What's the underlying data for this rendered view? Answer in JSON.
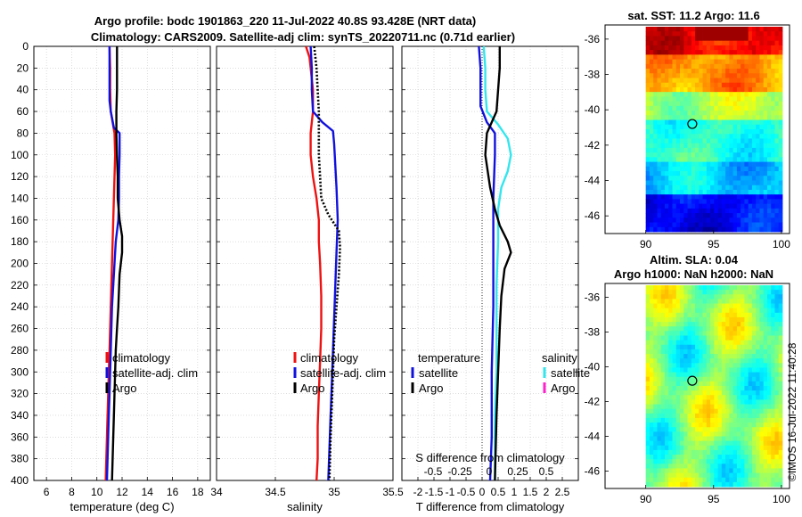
{
  "title_line1": "Argo profile: bodc 1901863_220 11-Jul-2022 40.8S 93.428E (NRT data)",
  "title_line2": "Climatology: CARS2009. Satellite-adj clim: synTS_20220711.nc (0.71d earlier)",
  "timestamp": "©IMOS 16-Jul-2022 11:40:28",
  "colors": {
    "red": "#ee1111",
    "blue": "#1111dd",
    "black": "#000000",
    "cyan": "#33e6ee",
    "magenta": "#ff22cc"
  },
  "chart_data": [
    {
      "type": "line",
      "panel": "temperature",
      "xlabel": "temperature (deg C)",
      "xlim": [
        5,
        19
      ],
      "xticks": [
        6,
        8,
        10,
        12,
        14,
        16,
        18
      ],
      "ylim": [
        0,
        400
      ],
      "yticks": [
        0,
        20,
        40,
        60,
        80,
        100,
        120,
        140,
        160,
        180,
        200,
        220,
        240,
        260,
        280,
        300,
        320,
        340,
        360,
        380,
        400
      ],
      "grid": true,
      "legend": [
        "climatology",
        "satellite-adj. clim",
        "Argo"
      ],
      "series": [
        {
          "name": "climatology",
          "color": "red",
          "width": 2.4,
          "dash": "",
          "points": [
            [
              11.0,
              0
            ],
            [
              11.05,
              20
            ],
            [
              11.05,
              40
            ],
            [
              11.1,
              60
            ],
            [
              11.4,
              80
            ],
            [
              11.45,
              100
            ],
            [
              11.4,
              120
            ],
            [
              11.35,
              140
            ],
            [
              11.3,
              160
            ],
            [
              11.25,
              180
            ],
            [
              11.2,
              200
            ],
            [
              11.15,
              220
            ],
            [
              11.1,
              240
            ],
            [
              11.05,
              260
            ],
            [
              11.0,
              280
            ],
            [
              10.95,
              300
            ],
            [
              10.9,
              320
            ],
            [
              10.85,
              340
            ],
            [
              10.8,
              360
            ],
            [
              10.75,
              380
            ],
            [
              10.7,
              400
            ]
          ]
        },
        {
          "name": "satellite-adj. clim",
          "color": "blue",
          "width": 2.4,
          "dash": "",
          "points": [
            [
              11.0,
              0
            ],
            [
              11.0,
              20
            ],
            [
              11.0,
              40
            ],
            [
              11.0,
              50
            ],
            [
              11.1,
              60
            ],
            [
              11.35,
              75
            ],
            [
              11.8,
              80
            ],
            [
              11.8,
              100
            ],
            [
              11.75,
              120
            ],
            [
              11.75,
              140
            ],
            [
              11.7,
              160
            ],
            [
              11.5,
              180
            ],
            [
              11.4,
              200
            ],
            [
              11.3,
              220
            ],
            [
              11.2,
              240
            ],
            [
              11.15,
              260
            ],
            [
              11.1,
              280
            ],
            [
              11.05,
              300
            ],
            [
              11.0,
              320
            ],
            [
              10.95,
              340
            ],
            [
              10.9,
              360
            ],
            [
              10.85,
              380
            ],
            [
              10.8,
              400
            ]
          ]
        },
        {
          "name": "Argo",
          "color": "black",
          "width": 2.4,
          "dash": "",
          "points": [
            [
              11.6,
              0
            ],
            [
              11.6,
              20
            ],
            [
              11.6,
              40
            ],
            [
              11.55,
              60
            ],
            [
              11.55,
              80
            ],
            [
              11.6,
              100
            ],
            [
              11.65,
              120
            ],
            [
              11.65,
              140
            ],
            [
              11.8,
              160
            ],
            [
              12.0,
              175
            ],
            [
              12.0,
              190
            ],
            [
              11.8,
              210
            ],
            [
              11.7,
              240
            ],
            [
              11.6,
              260
            ],
            [
              11.5,
              280
            ],
            [
              11.45,
              300
            ],
            [
              11.4,
              320
            ],
            [
              11.35,
              340
            ],
            [
              11.3,
              360
            ],
            [
              11.25,
              380
            ],
            [
              11.2,
              400
            ]
          ]
        }
      ]
    },
    {
      "type": "line",
      "panel": "salinity",
      "xlabel": "salinity",
      "xlim": [
        34,
        35.5
      ],
      "xticks": [
        34,
        34.5,
        35,
        35.5
      ],
      "ylim": [
        0,
        400
      ],
      "grid": true,
      "legend": [
        "climatology",
        "satellite-adj. clim",
        "Argo"
      ],
      "series": [
        {
          "name": "climatology",
          "color": "red",
          "width": 2.4,
          "dash": "",
          "points": [
            [
              34.76,
              0
            ],
            [
              34.79,
              10
            ],
            [
              34.8,
              20
            ],
            [
              34.82,
              40
            ],
            [
              34.82,
              60
            ],
            [
              34.8,
              80
            ],
            [
              34.8,
              100
            ],
            [
              34.82,
              120
            ],
            [
              34.85,
              140
            ],
            [
              34.87,
              160
            ],
            [
              34.87,
              180
            ],
            [
              34.88,
              200
            ],
            [
              34.89,
              230
            ],
            [
              34.89,
              260
            ],
            [
              34.88,
              290
            ],
            [
              34.87,
              320
            ],
            [
              34.86,
              350
            ],
            [
              34.86,
              380
            ],
            [
              34.85,
              400
            ]
          ]
        },
        {
          "name": "satellite-adj. clim",
          "color": "blue",
          "width": 2.4,
          "dash": "",
          "points": [
            [
              34.8,
              0
            ],
            [
              34.81,
              20
            ],
            [
              34.81,
              40
            ],
            [
              34.82,
              60
            ],
            [
              34.9,
              70
            ],
            [
              34.99,
              78
            ],
            [
              35.0,
              90
            ],
            [
              35.01,
              110
            ],
            [
              35.02,
              130
            ],
            [
              35.03,
              160
            ],
            [
              35.02,
              190
            ],
            [
              35.01,
              220
            ],
            [
              35.0,
              250
            ],
            [
              34.99,
              280
            ],
            [
              34.98,
              310
            ],
            [
              34.97,
              340
            ],
            [
              34.96,
              370
            ],
            [
              34.95,
              400
            ]
          ]
        },
        {
          "name": "Argo",
          "color": "black",
          "width": 2.6,
          "dash": "2,2",
          "points": [
            [
              34.83,
              0
            ],
            [
              34.85,
              20
            ],
            [
              34.86,
              40
            ],
            [
              34.87,
              60
            ],
            [
              34.87,
              80
            ],
            [
              34.87,
              100
            ],
            [
              34.88,
              120
            ],
            [
              34.89,
              140
            ],
            [
              34.95,
              155
            ],
            [
              35.04,
              170
            ],
            [
              35.05,
              185
            ],
            [
              35.04,
              210
            ],
            [
              35.02,
              240
            ],
            [
              35.0,
              270
            ],
            [
              34.99,
              300
            ],
            [
              34.98,
              330
            ],
            [
              34.97,
              360
            ],
            [
              34.96,
              400
            ]
          ]
        }
      ]
    },
    {
      "type": "line",
      "panel": "difference",
      "xlabel": "T difference from climatology",
      "xlim": [
        -2.5,
        3
      ],
      "xticks": [
        -2,
        -1.5,
        -1,
        -0.5,
        0,
        0.5,
        1,
        1.5,
        2,
        2.5
      ],
      "xtick_labels": [
        "-2",
        "-1.5",
        "-1",
        "-0.5",
        "0",
        "0.5",
        "1",
        "1.5",
        "2",
        "2.5"
      ],
      "secondary_axis_label": "S difference from climatology",
      "secondary_ticks": [
        "-0.5",
        "-0.25",
        "0",
        "0.25",
        "0.5"
      ],
      "ylim": [
        0,
        400
      ],
      "grid": true,
      "legend_temperature_title": "temperature",
      "legend_salinity_title": "salinity",
      "legend_temperature": [
        "satellite",
        "Argo"
      ],
      "legend_salinity": [
        "satellite",
        "Argo"
      ],
      "series": [
        {
          "name": "zero line",
          "color": "black",
          "width": 0.8,
          "dash": "1,2",
          "points": [
            [
              0,
              0
            ],
            [
              0,
              400
            ]
          ]
        },
        {
          "name": "temperature satellite",
          "color": "blue",
          "width": 2.4,
          "dash": "",
          "points": [
            [
              -0.1,
              0
            ],
            [
              -0.05,
              20
            ],
            [
              -0.05,
              40
            ],
            [
              -0.05,
              55
            ],
            [
              0.15,
              70
            ],
            [
              0.4,
              80
            ],
            [
              0.4,
              100
            ],
            [
              0.35,
              140
            ],
            [
              0.35,
              180
            ],
            [
              0.35,
              240
            ],
            [
              0.3,
              300
            ],
            [
              0.3,
              360
            ],
            [
              0.25,
              400
            ]
          ]
        },
        {
          "name": "salinity satellite",
          "color": "cyan",
          "width": 2.4,
          "dash": "",
          "points": [
            [
              0.05,
              0
            ],
            [
              0.1,
              20
            ],
            [
              0.1,
              40
            ],
            [
              0.15,
              60
            ],
            [
              0.5,
              72
            ],
            [
              0.8,
              85
            ],
            [
              0.9,
              100
            ],
            [
              0.8,
              115
            ],
            [
              0.6,
              130
            ],
            [
              0.5,
              150
            ],
            [
              0.5,
              180
            ],
            [
              0.45,
              220
            ],
            [
              0.45,
              260
            ],
            [
              0.45,
              300
            ],
            [
              0.4,
              340
            ],
            [
              0.4,
              400
            ]
          ]
        },
        {
          "name": "temperature Argo",
          "color": "black",
          "width": 2.4,
          "dash": "",
          "points": [
            [
              0.55,
              0
            ],
            [
              0.55,
              20
            ],
            [
              0.5,
              40
            ],
            [
              0.45,
              60
            ],
            [
              0.15,
              80
            ],
            [
              0.1,
              100
            ],
            [
              0.25,
              130
            ],
            [
              0.4,
              150
            ],
            [
              0.55,
              165
            ],
            [
              0.8,
              180
            ],
            [
              0.9,
              190
            ],
            [
              0.7,
              205
            ],
            [
              0.6,
              230
            ],
            [
              0.55,
              260
            ],
            [
              0.5,
              300
            ],
            [
              0.45,
              340
            ],
            [
              0.4,
              400
            ]
          ]
        }
      ]
    }
  ],
  "maps": [
    {
      "title_line1": "sat. SST: 11.2 Argo: 11.6",
      "title_line2": "",
      "kind": "sst",
      "xticks": [
        "90",
        "95",
        "100"
      ],
      "yticks": [
        "-36",
        "-38",
        "-40",
        "-42",
        "-44",
        "-46"
      ],
      "marker_lon": 93.43,
      "marker_lat": -40.8
    },
    {
      "title_line1": "Altim. SLA: 0.04",
      "title_line2": "Argo h1000: NaN h2000: NaN",
      "kind": "sla",
      "xticks": [
        "90",
        "95",
        "100"
      ],
      "yticks": [
        "-36",
        "-38",
        "-40",
        "-42",
        "-44",
        "-46"
      ],
      "marker_lon": 93.43,
      "marker_lat": -40.8
    }
  ]
}
